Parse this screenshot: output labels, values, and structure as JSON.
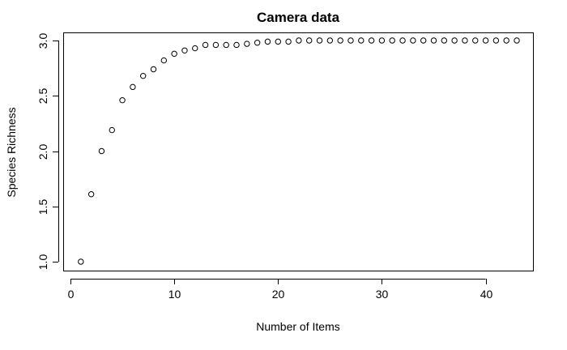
{
  "chart_data": {
    "type": "scatter",
    "title": "Camera data",
    "xlabel": "Number of Items",
    "ylabel": "Species Richness",
    "xlim": [
      0,
      43
    ],
    "ylim": [
      1.0,
      3.0
    ],
    "x_ticks": [
      0,
      10,
      20,
      30,
      40
    ],
    "x_tick_labels": [
      "0",
      "10",
      "20",
      "30",
      "40"
    ],
    "y_ticks": [
      1.0,
      1.5,
      2.0,
      2.5,
      3.0
    ],
    "y_tick_labels": [
      "1.0",
      "1.5",
      "2.0",
      "2.5",
      "3.0"
    ],
    "grid": false,
    "marker": "open-circle",
    "x": [
      1,
      2,
      3,
      4,
      5,
      6,
      7,
      8,
      9,
      10,
      11,
      12,
      13,
      14,
      15,
      16,
      17,
      18,
      19,
      20,
      21,
      22,
      23,
      24,
      25,
      26,
      27,
      28,
      29,
      30,
      31,
      32,
      33,
      34,
      35,
      36,
      37,
      38,
      39,
      40,
      41,
      42,
      43
    ],
    "y": [
      1.0,
      1.61,
      2.0,
      2.19,
      2.46,
      2.58,
      2.68,
      2.74,
      2.82,
      2.88,
      2.91,
      2.93,
      2.96,
      2.96,
      2.96,
      2.96,
      2.97,
      2.98,
      2.99,
      2.99,
      2.99,
      3.0,
      3.0,
      3.0,
      3.0,
      3.0,
      3.0,
      3.0,
      3.0,
      3.0,
      3.0,
      3.0,
      3.0,
      3.0,
      3.0,
      3.0,
      3.0,
      3.0,
      3.0,
      3.0,
      3.0,
      3.0,
      3.0
    ]
  }
}
